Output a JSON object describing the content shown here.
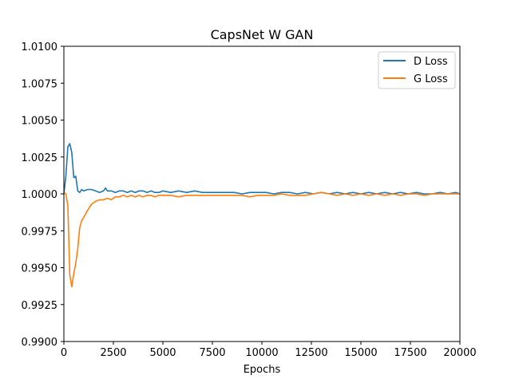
{
  "chart_data": {
    "type": "line",
    "title": "CapsNet W GAN",
    "xlabel": "Epochs",
    "ylabel": "",
    "xlim": [
      0,
      20000
    ],
    "ylim": [
      0.99,
      1.01
    ],
    "grid": false,
    "legend_position": "top-right",
    "x_ticks": [
      "0",
      "2500",
      "5000",
      "7500",
      "10000",
      "12500",
      "15000",
      "17500",
      "20000"
    ],
    "y_ticks": [
      "0.9900",
      "0.9925",
      "0.9950",
      "0.9975",
      "1.0000",
      "1.0025",
      "1.0050",
      "1.0075",
      "1.0100"
    ],
    "series": [
      {
        "name": "D Loss",
        "color": "#1f77b4",
        "x": [
          0,
          100,
          200,
          300,
          400,
          500,
          600,
          700,
          800,
          900,
          1000,
          1200,
          1400,
          1600,
          1800,
          2000,
          2100,
          2200,
          2400,
          2600,
          2800,
          3000,
          3200,
          3400,
          3600,
          3800,
          4000,
          4200,
          4400,
          4600,
          4800,
          5000,
          5400,
          5800,
          6200,
          6600,
          7000,
          7400,
          7800,
          8200,
          8600,
          9000,
          9400,
          9800,
          10200,
          10600,
          11000,
          11400,
          11800,
          12200,
          12600,
          13000,
          13400,
          13800,
          14200,
          14600,
          15000,
          15400,
          15800,
          16200,
          16600,
          17000,
          17400,
          17800,
          18200,
          18600,
          19000,
          19400,
          19800,
          20000
        ],
        "y": [
          1.0,
          1.0012,
          1.0032,
          1.0034,
          1.0028,
          1.0011,
          1.0012,
          1.0002,
          1.0001,
          1.0003,
          1.0002,
          1.0003,
          1.0003,
          1.0002,
          1.0001,
          1.0002,
          1.0004,
          1.0002,
          1.0002,
          1.0001,
          1.0002,
          1.0002,
          1.0001,
          1.0002,
          1.0001,
          1.0002,
          1.0002,
          1.0001,
          1.0002,
          1.0001,
          1.0001,
          1.0002,
          1.0001,
          1.0002,
          1.0001,
          1.0002,
          1.0001,
          1.0001,
          1.0001,
          1.0001,
          1.0001,
          1.0,
          1.0001,
          1.0001,
          1.0001,
          1.0,
          1.0001,
          1.0001,
          1.0,
          1.0001,
          1.0,
          1.0001,
          1.0,
          1.0001,
          1.0,
          1.0001,
          1.0,
          1.0001,
          1.0,
          1.0001,
          1.0,
          1.0001,
          1.0,
          1.0001,
          1.0,
          1.0,
          1.0001,
          1.0,
          1.0001,
          1.0
        ]
      },
      {
        "name": "G Loss",
        "color": "#ff7f0e",
        "x": [
          0,
          100,
          200,
          300,
          400,
          500,
          600,
          700,
          800,
          900,
          1000,
          1200,
          1400,
          1600,
          1800,
          2000,
          2200,
          2400,
          2600,
          2800,
          3000,
          3200,
          3400,
          3600,
          3800,
          4000,
          4200,
          4400,
          4600,
          4800,
          5000,
          5400,
          5800,
          6200,
          6600,
          7000,
          7400,
          7800,
          8200,
          8600,
          9000,
          9400,
          9800,
          10200,
          10600,
          11000,
          11400,
          11800,
          12200,
          12600,
          13000,
          13400,
          13800,
          14200,
          14600,
          15000,
          15400,
          15800,
          16200,
          16600,
          17000,
          17400,
          17800,
          18200,
          18600,
          19000,
          19400,
          19800,
          20000
        ],
        "y": [
          1.0001,
          1.0,
          0.9992,
          0.9945,
          0.9937,
          0.9946,
          0.9953,
          0.9963,
          0.9977,
          0.9982,
          0.9984,
          0.9989,
          0.9993,
          0.9995,
          0.9996,
          0.9996,
          0.9997,
          0.9996,
          0.9998,
          0.9998,
          0.9999,
          0.9998,
          0.9999,
          0.9998,
          0.9999,
          0.9998,
          0.9999,
          0.9999,
          0.9998,
          0.9999,
          0.9999,
          0.9999,
          0.9998,
          0.9999,
          0.9999,
          0.9999,
          0.9999,
          0.9999,
          0.9999,
          0.9999,
          0.9999,
          0.9998,
          0.9999,
          0.9999,
          0.9999,
          1.0,
          0.9999,
          0.9999,
          0.9999,
          1.0,
          1.0001,
          1.0,
          0.9999,
          1.0,
          0.9999,
          1.0,
          0.9999,
          1.0,
          0.9999,
          1.0,
          0.9999,
          1.0,
          1.0,
          0.9999,
          1.0,
          1.0,
          1.0,
          1.0,
          1.0
        ]
      }
    ]
  }
}
